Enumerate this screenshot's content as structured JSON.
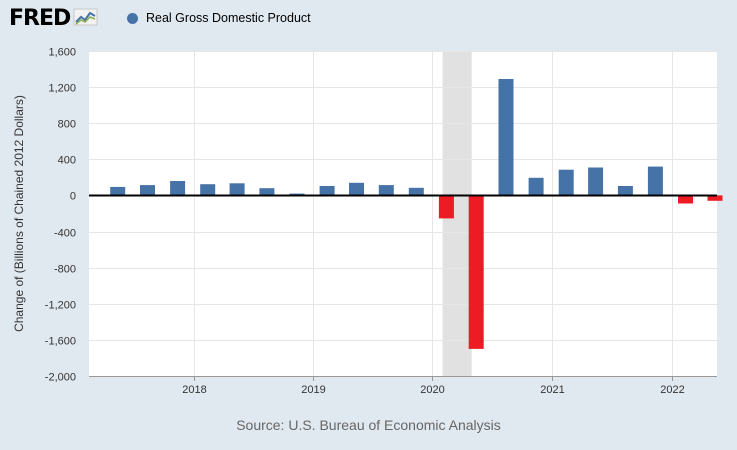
{
  "logo": {
    "text": "FRED",
    "icon": "line-chart-icon"
  },
  "legend": {
    "label": "Real Gross Domestic Product",
    "color": "#4572a7"
  },
  "chart_data": {
    "type": "bar",
    "title": "",
    "xlabel": "",
    "ylabel": "Change of (Billions of Chained 2012 Dollars)",
    "ylim": [
      -2000,
      1600
    ],
    "yticks": [
      -2000,
      -1600,
      -1200,
      -800,
      -400,
      0,
      400,
      800,
      1200,
      1600
    ],
    "ytick_labels": [
      "-2,000",
      "-1,600",
      "-1,200",
      "-800",
      "-400",
      "0",
      "400",
      "800",
      "1,200",
      "1,600"
    ],
    "xtick_labels": [
      "2018",
      "2019",
      "2020",
      "2021",
      "2022"
    ],
    "categories": [
      "2017-04-01",
      "2017-07-01",
      "2017-10-01",
      "2018-01-01",
      "2018-04-01",
      "2018-07-01",
      "2018-10-01",
      "2019-01-01",
      "2019-04-01",
      "2019-07-01",
      "2019-10-01",
      "2020-01-01",
      "2020-04-01",
      "2020-07-01",
      "2020-10-01",
      "2021-01-01",
      "2021-04-01",
      "2021-07-01",
      "2021-10-01",
      "2022-01-01",
      "2022-04-01"
    ],
    "series": [
      {
        "name": "Real Gross Domestic Product",
        "values": [
          95,
          115,
          160,
          125,
          135,
          80,
          20,
          105,
          140,
          115,
          85,
          -255,
          -1700,
          1290,
          195,
          285,
          310,
          105,
          320,
          -90,
          -60
        ]
      }
    ],
    "colors": {
      "positive": "#4572a7",
      "negative": "#ed1c24",
      "recession": "#e1e1e1"
    },
    "recession": {
      "start": "2020-02-01",
      "end": "2020-04-30"
    },
    "grid": true,
    "legend_position": "top-left"
  },
  "source": "Source: U.S. Bureau of Economic Analysis"
}
